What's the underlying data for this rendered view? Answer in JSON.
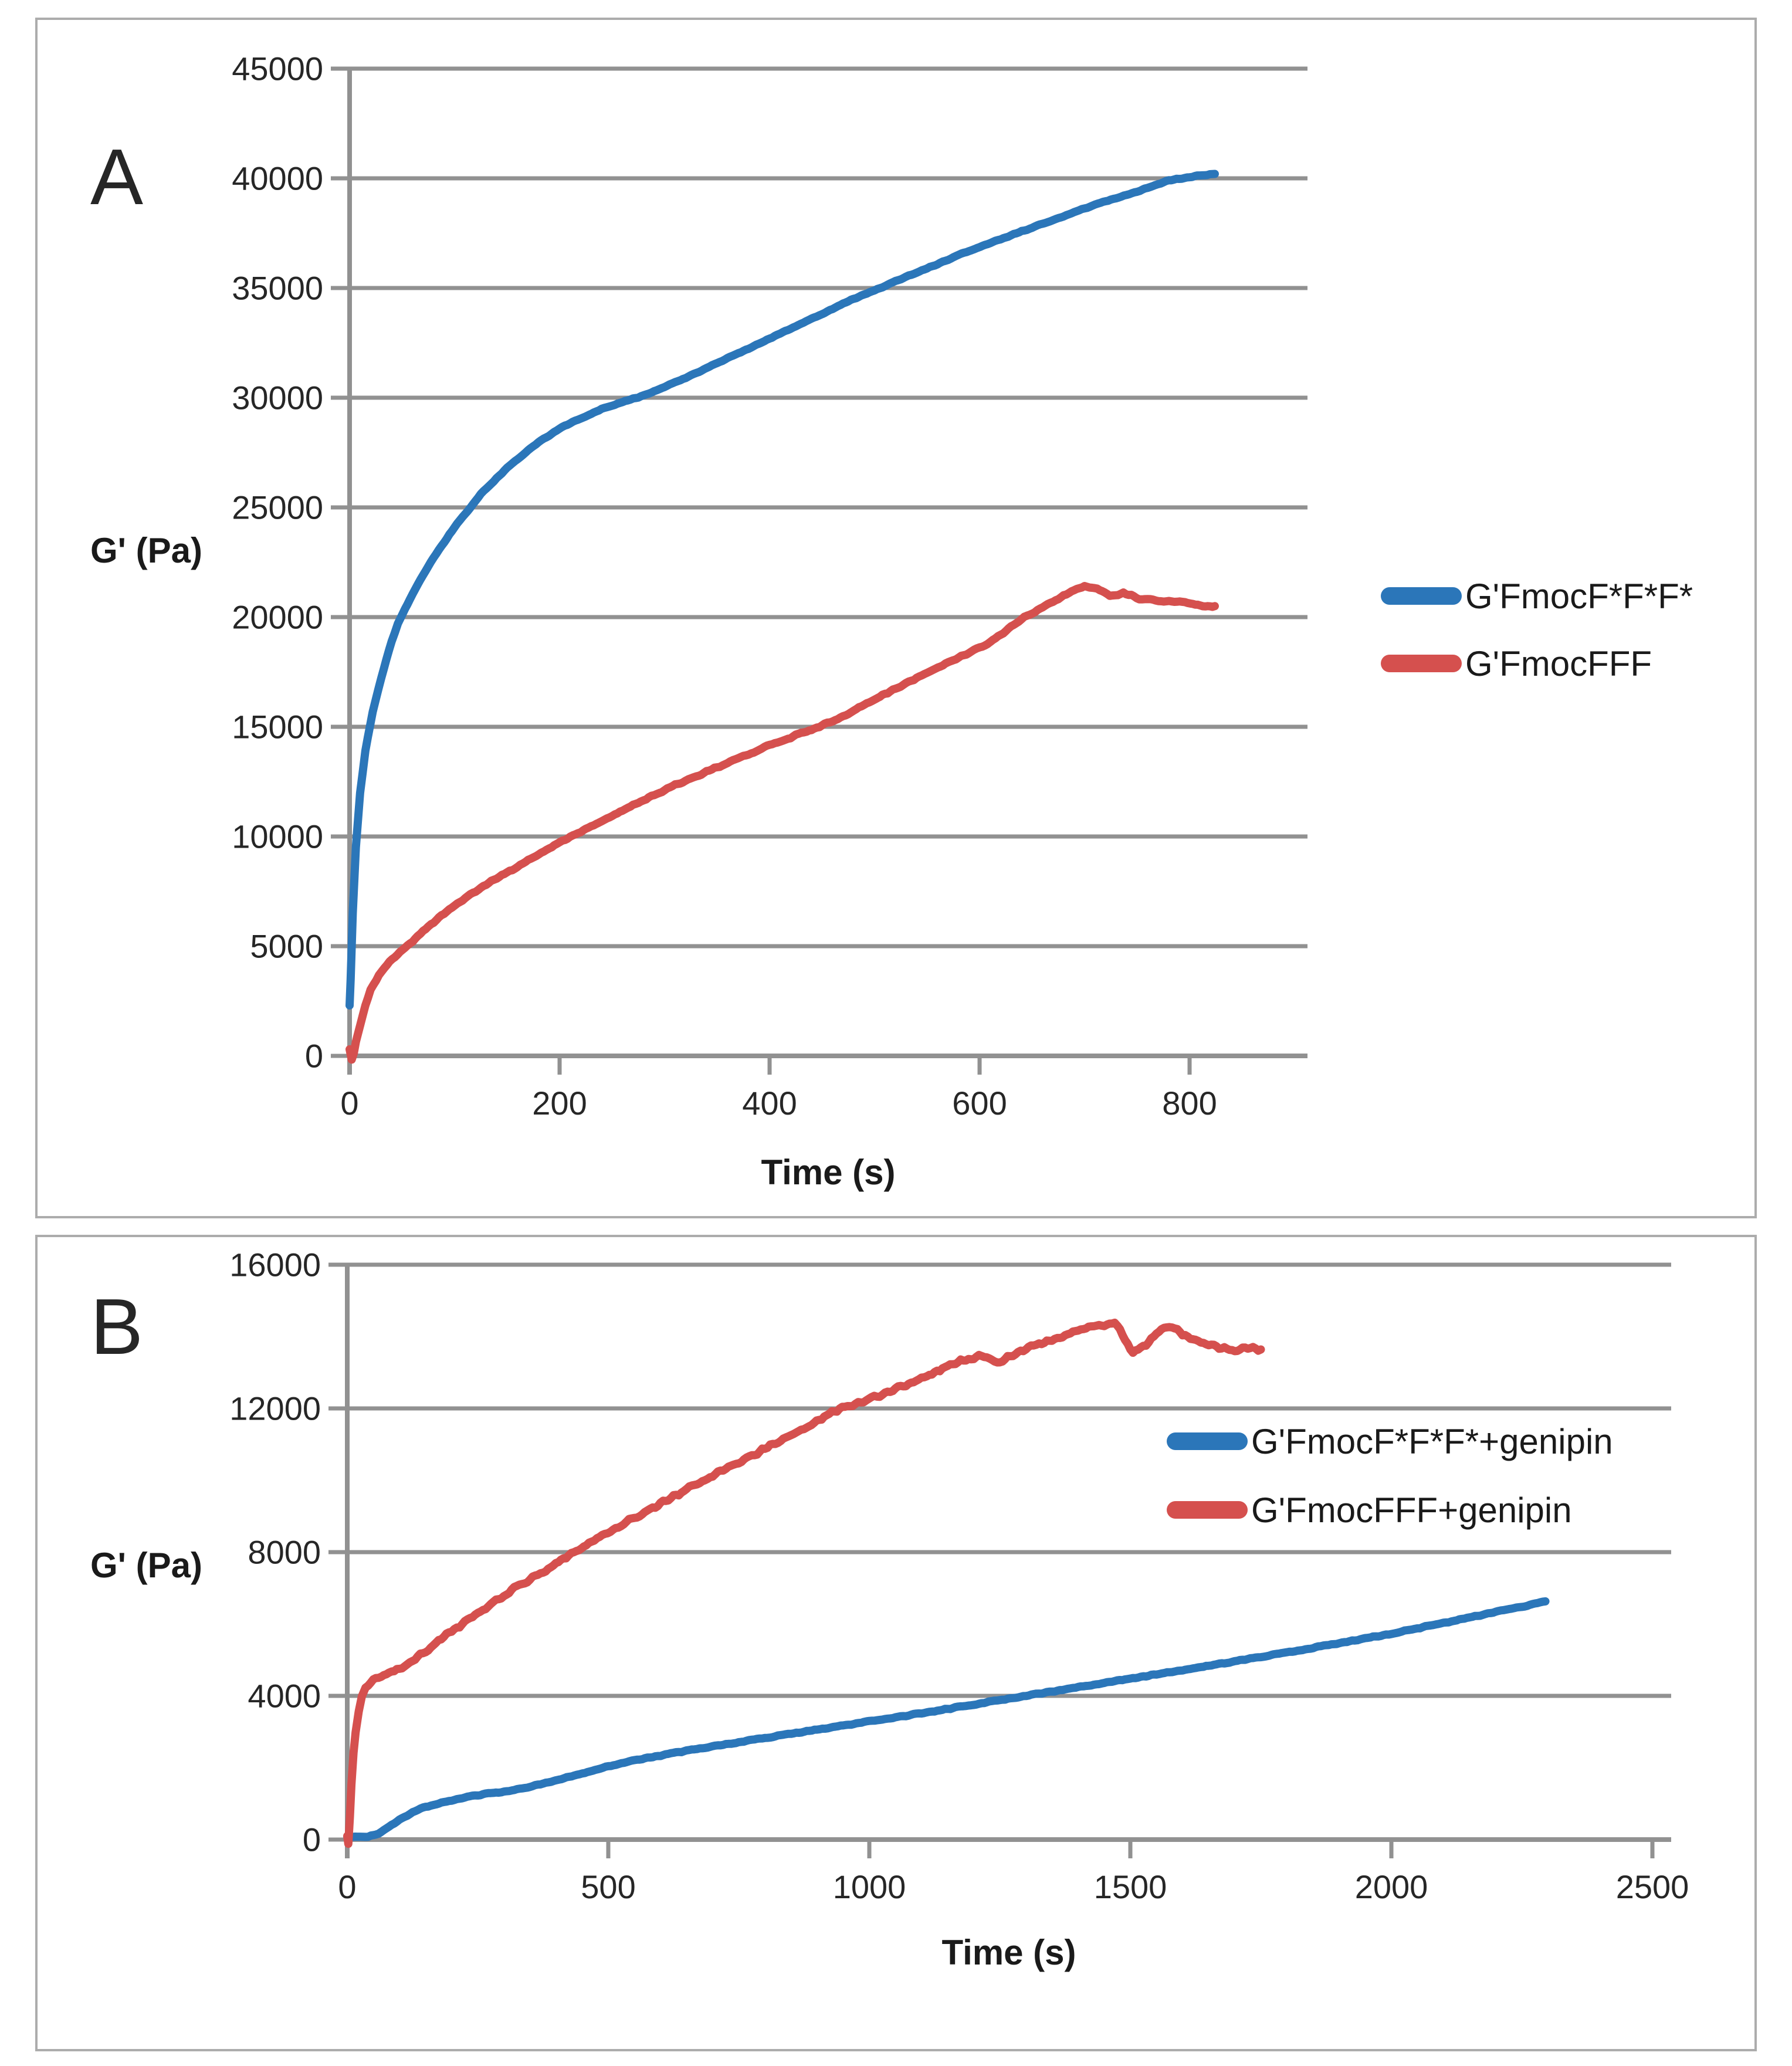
{
  "figure": {
    "background": "#ffffff",
    "panel_border_color": "#ACACAC",
    "grid_color": "#919191",
    "tick_text_color": "#262626",
    "series_colors": {
      "blue": "#2B76B9",
      "red": "#D5504E"
    }
  },
  "chart_data": [
    {
      "type": "line",
      "panel_label": "A",
      "xlabel": "Time (s)",
      "ylabel": "G' (Pa)",
      "xlim": [
        0,
        912
      ],
      "ylim": [
        0,
        45000
      ],
      "xticks": [
        0,
        200,
        400,
        600,
        800
      ],
      "yticks": [
        0,
        5000,
        10000,
        15000,
        20000,
        25000,
        30000,
        35000,
        40000,
        45000
      ],
      "grid": "horizontal",
      "legend_position": "right-inside",
      "series": [
        {
          "name": "G'FmocF*F*F*",
          "color_key": "blue",
          "x": [
            0,
            1,
            3,
            6,
            10,
            15,
            22,
            30,
            40,
            46,
            55,
            65,
            80,
            100,
            125,
            150,
            175,
            200,
            240,
            280,
            320,
            360,
            400,
            440,
            480,
            510,
            550,
            590,
            630,
            670,
            710,
            750,
            780,
            805,
            824
          ],
          "y": [
            2300,
            3500,
            6500,
            9500,
            12000,
            13900,
            15700,
            17200,
            18900,
            19700,
            20600,
            21500,
            22700,
            24100,
            25600,
            26800,
            27800,
            28600,
            29500,
            30100,
            30900,
            31800,
            32700,
            33600,
            34500,
            35100,
            35900,
            36700,
            37400,
            38100,
            38800,
            39400,
            39900,
            40100,
            40200
          ]
        },
        {
          "name": "G'FmocFFF",
          "color_key": "red",
          "x": [
            0,
            2,
            4,
            6,
            10,
            15,
            20,
            28,
            38,
            48,
            55,
            70,
            85,
            100,
            115,
            135,
            155,
            175,
            195,
            215,
            240,
            265,
            290,
            315,
            340,
            370,
            400,
            430,
            460,
            490,
            520,
            550,
            580,
            610,
            640,
            665,
            685,
            700,
            712,
            724,
            737,
            752,
            768,
            788,
            803,
            815,
            824
          ],
          "y": [
            300,
            -150,
            100,
            600,
            1400,
            2300,
            3000,
            3700,
            4300,
            4750,
            5000,
            5700,
            6300,
            6850,
            7350,
            7950,
            8500,
            9050,
            9600,
            10100,
            10700,
            11300,
            11900,
            12450,
            12950,
            13550,
            14150,
            14700,
            15250,
            16000,
            16750,
            17450,
            18150,
            18850,
            19900,
            20600,
            21100,
            21400,
            21300,
            20950,
            21100,
            20850,
            20750,
            20700,
            20600,
            20520,
            20500
          ]
        }
      ]
    },
    {
      "type": "line",
      "panel_label": "B",
      "xlabel": "Time (s)",
      "ylabel": "G' (Pa)",
      "xlim": [
        0,
        2535
      ],
      "ylim": [
        0,
        16000
      ],
      "xticks": [
        0,
        500,
        1000,
        1500,
        2000,
        2500
      ],
      "yticks": [
        0,
        4000,
        8000,
        12000,
        16000
      ],
      "grid": "horizontal",
      "legend_position": "right-inside",
      "series": [
        {
          "name": "G'FmocF*F*F*+genipin",
          "color_key": "blue",
          "x": [
            0,
            40,
            60,
            80,
            100,
            120,
            140,
            160,
            180,
            200,
            230,
            260,
            300,
            350,
            400,
            450,
            500,
            560,
            620,
            700,
            800,
            900,
            1000,
            1100,
            1200,
            1300,
            1400,
            1500,
            1600,
            1700,
            1800,
            1900,
            2000,
            2100,
            2200,
            2260,
            2295
          ],
          "y": [
            80,
            90,
            150,
            350,
            550,
            720,
            860,
            960,
            1030,
            1090,
            1180,
            1260,
            1330,
            1470,
            1650,
            1840,
            2040,
            2230,
            2400,
            2600,
            2830,
            3060,
            3290,
            3520,
            3760,
            4000,
            4240,
            4480,
            4720,
            4960,
            5210,
            5470,
            5730,
            6030,
            6330,
            6510,
            6630
          ]
        },
        {
          "name": "G'FmocFFF+genipin",
          "color_key": "red",
          "x": [
            0,
            2,
            5,
            8,
            12,
            16,
            22,
            28,
            35,
            45,
            60,
            80,
            100,
            130,
            160,
            200,
            260,
            320,
            390,
            463,
            550,
            650,
            750,
            850,
            943,
            1030,
            1100,
            1160,
            1210,
            1250,
            1290,
            1340,
            1390,
            1440,
            1470,
            1490,
            1505,
            1530,
            1560,
            1580,
            1610,
            1640,
            1670,
            1700,
            1725,
            1750
          ],
          "y": [
            100,
            -150,
            600,
            1500,
            2400,
            3000,
            3600,
            4000,
            4250,
            4400,
            4550,
            4650,
            4750,
            5050,
            5350,
            5800,
            6400,
            7000,
            7600,
            8250,
            8950,
            9750,
            10500,
            11250,
            12000,
            12400,
            12850,
            13250,
            13450,
            13300,
            13600,
            13850,
            14100,
            14300,
            14420,
            13900,
            13550,
            13750,
            14200,
            14250,
            14000,
            13800,
            13680,
            13620,
            13700,
            13640
          ]
        }
      ]
    }
  ]
}
